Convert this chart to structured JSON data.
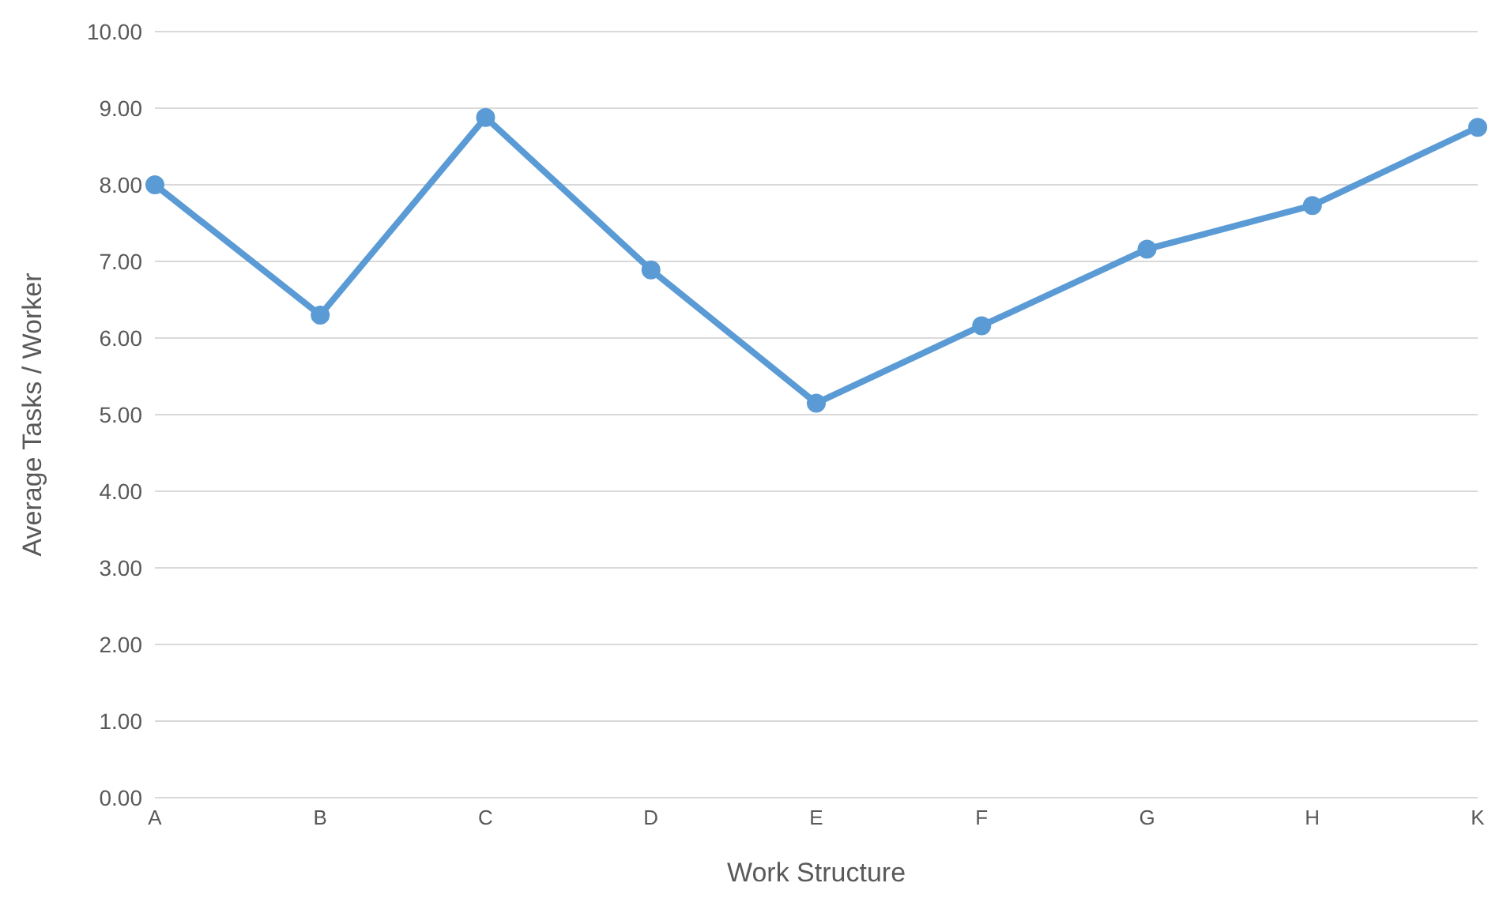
{
  "chart_data": {
    "type": "line",
    "xlabel": "Work Structure",
    "ylabel": "Average Tasks / Worker",
    "categories": [
      "A",
      "B",
      "C",
      "D",
      "E",
      "F",
      "G",
      "H",
      "K"
    ],
    "series": [
      {
        "color": "#5b9bd5",
        "values": [
          8.0,
          6.3,
          8.88,
          6.89,
          5.15,
          6.16,
          7.16,
          7.73,
          8.75
        ]
      }
    ],
    "ylim": [
      0,
      10
    ],
    "yticks": [
      {
        "value": 0,
        "label": "0.00"
      },
      {
        "value": 1,
        "label": "1.00"
      },
      {
        "value": 2,
        "label": "2.00"
      },
      {
        "value": 3,
        "label": "3.00"
      },
      {
        "value": 4,
        "label": "4.00"
      },
      {
        "value": 5,
        "label": "5.00"
      },
      {
        "value": 6,
        "label": "6.00"
      },
      {
        "value": 7,
        "label": "7.00"
      },
      {
        "value": 8,
        "label": "8.00"
      },
      {
        "value": 9,
        "label": "9.00"
      },
      {
        "value": 10,
        "label": "10.00"
      }
    ],
    "grid": "y",
    "marker": "circle",
    "line_style": "solid",
    "legend": false
  }
}
